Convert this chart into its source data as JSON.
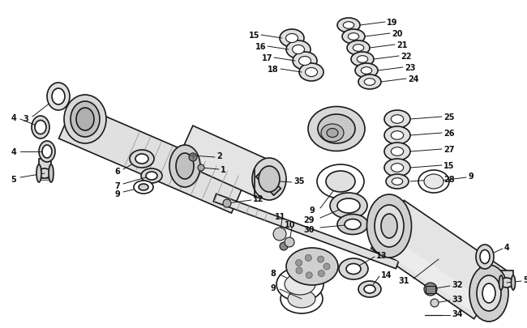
{
  "background_color": "#ffffff",
  "fig_width": 6.5,
  "fig_height": 4.06,
  "dpi": 100,
  "line_color": "#1a1a1a",
  "label_color": "#111111",
  "label_fontsize": 7.0,
  "label_fontsize_bold": 7.5
}
